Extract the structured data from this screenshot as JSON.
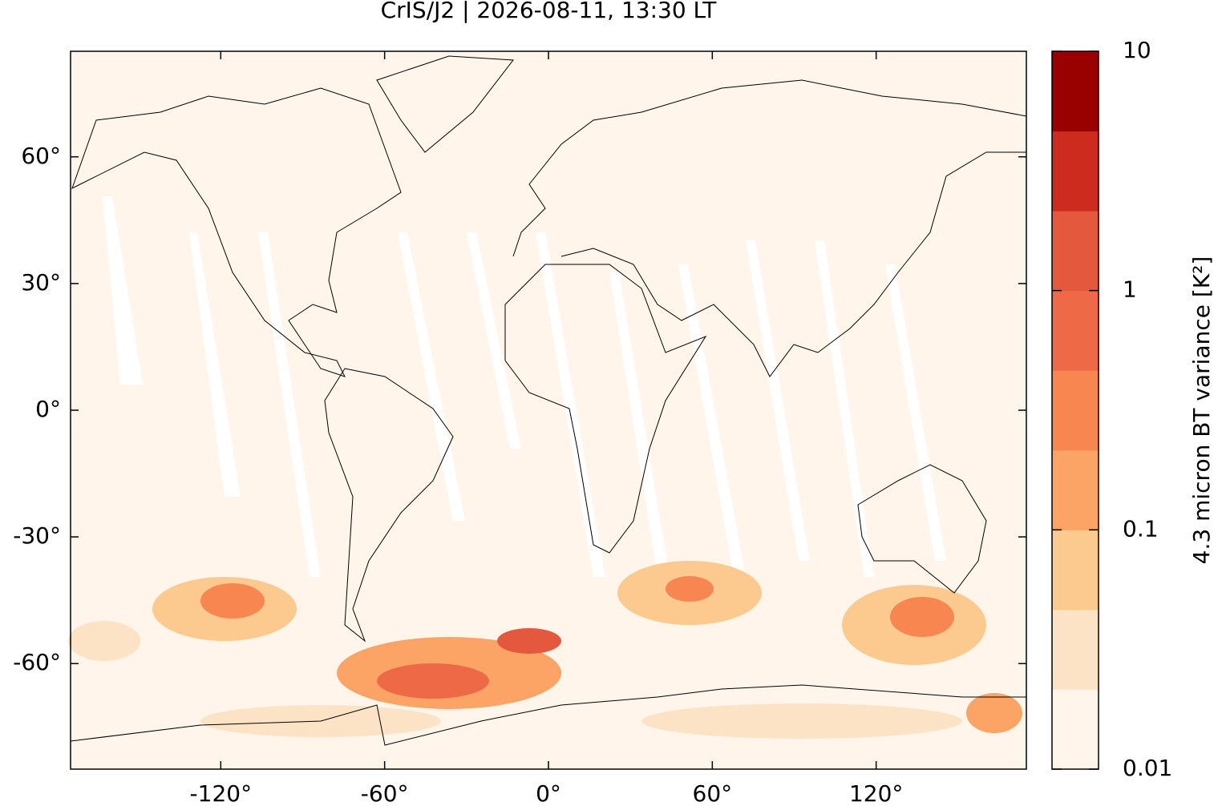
{
  "chart_data": {
    "type": "map",
    "title": "CrIS/J2 | 2026-08-11, 13:30 LT",
    "xlim": [
      -175,
      175
    ],
    "ylim": [
      -85,
      85
    ],
    "xticks": [
      {
        "value": -120,
        "label": "-120°"
      },
      {
        "value": -60,
        "label": "-60°"
      },
      {
        "value": 0,
        "label": "0°"
      },
      {
        "value": 60,
        "label": "60°"
      },
      {
        "value": 120,
        "label": "120°"
      }
    ],
    "yticks": [
      {
        "value": -60,
        "label": "-60°"
      },
      {
        "value": -30,
        "label": "-30°"
      },
      {
        "value": 0,
        "label": "0°"
      },
      {
        "value": 30,
        "label": "30°"
      },
      {
        "value": 60,
        "label": "60°"
      }
    ],
    "colorbar": {
      "label": "4.3 micron BT variance [K²]",
      "scale": "log",
      "lim": [
        0.01,
        10
      ],
      "ticks": [
        0.01,
        0.1,
        1,
        10
      ],
      "colors": [
        "#fff5eb",
        "#fde3c6",
        "#fcc98f",
        "#fca466",
        "#f88650",
        "#ee6a46",
        "#e4583e",
        "#cc2b1e",
        "#990000"
      ]
    }
  }
}
